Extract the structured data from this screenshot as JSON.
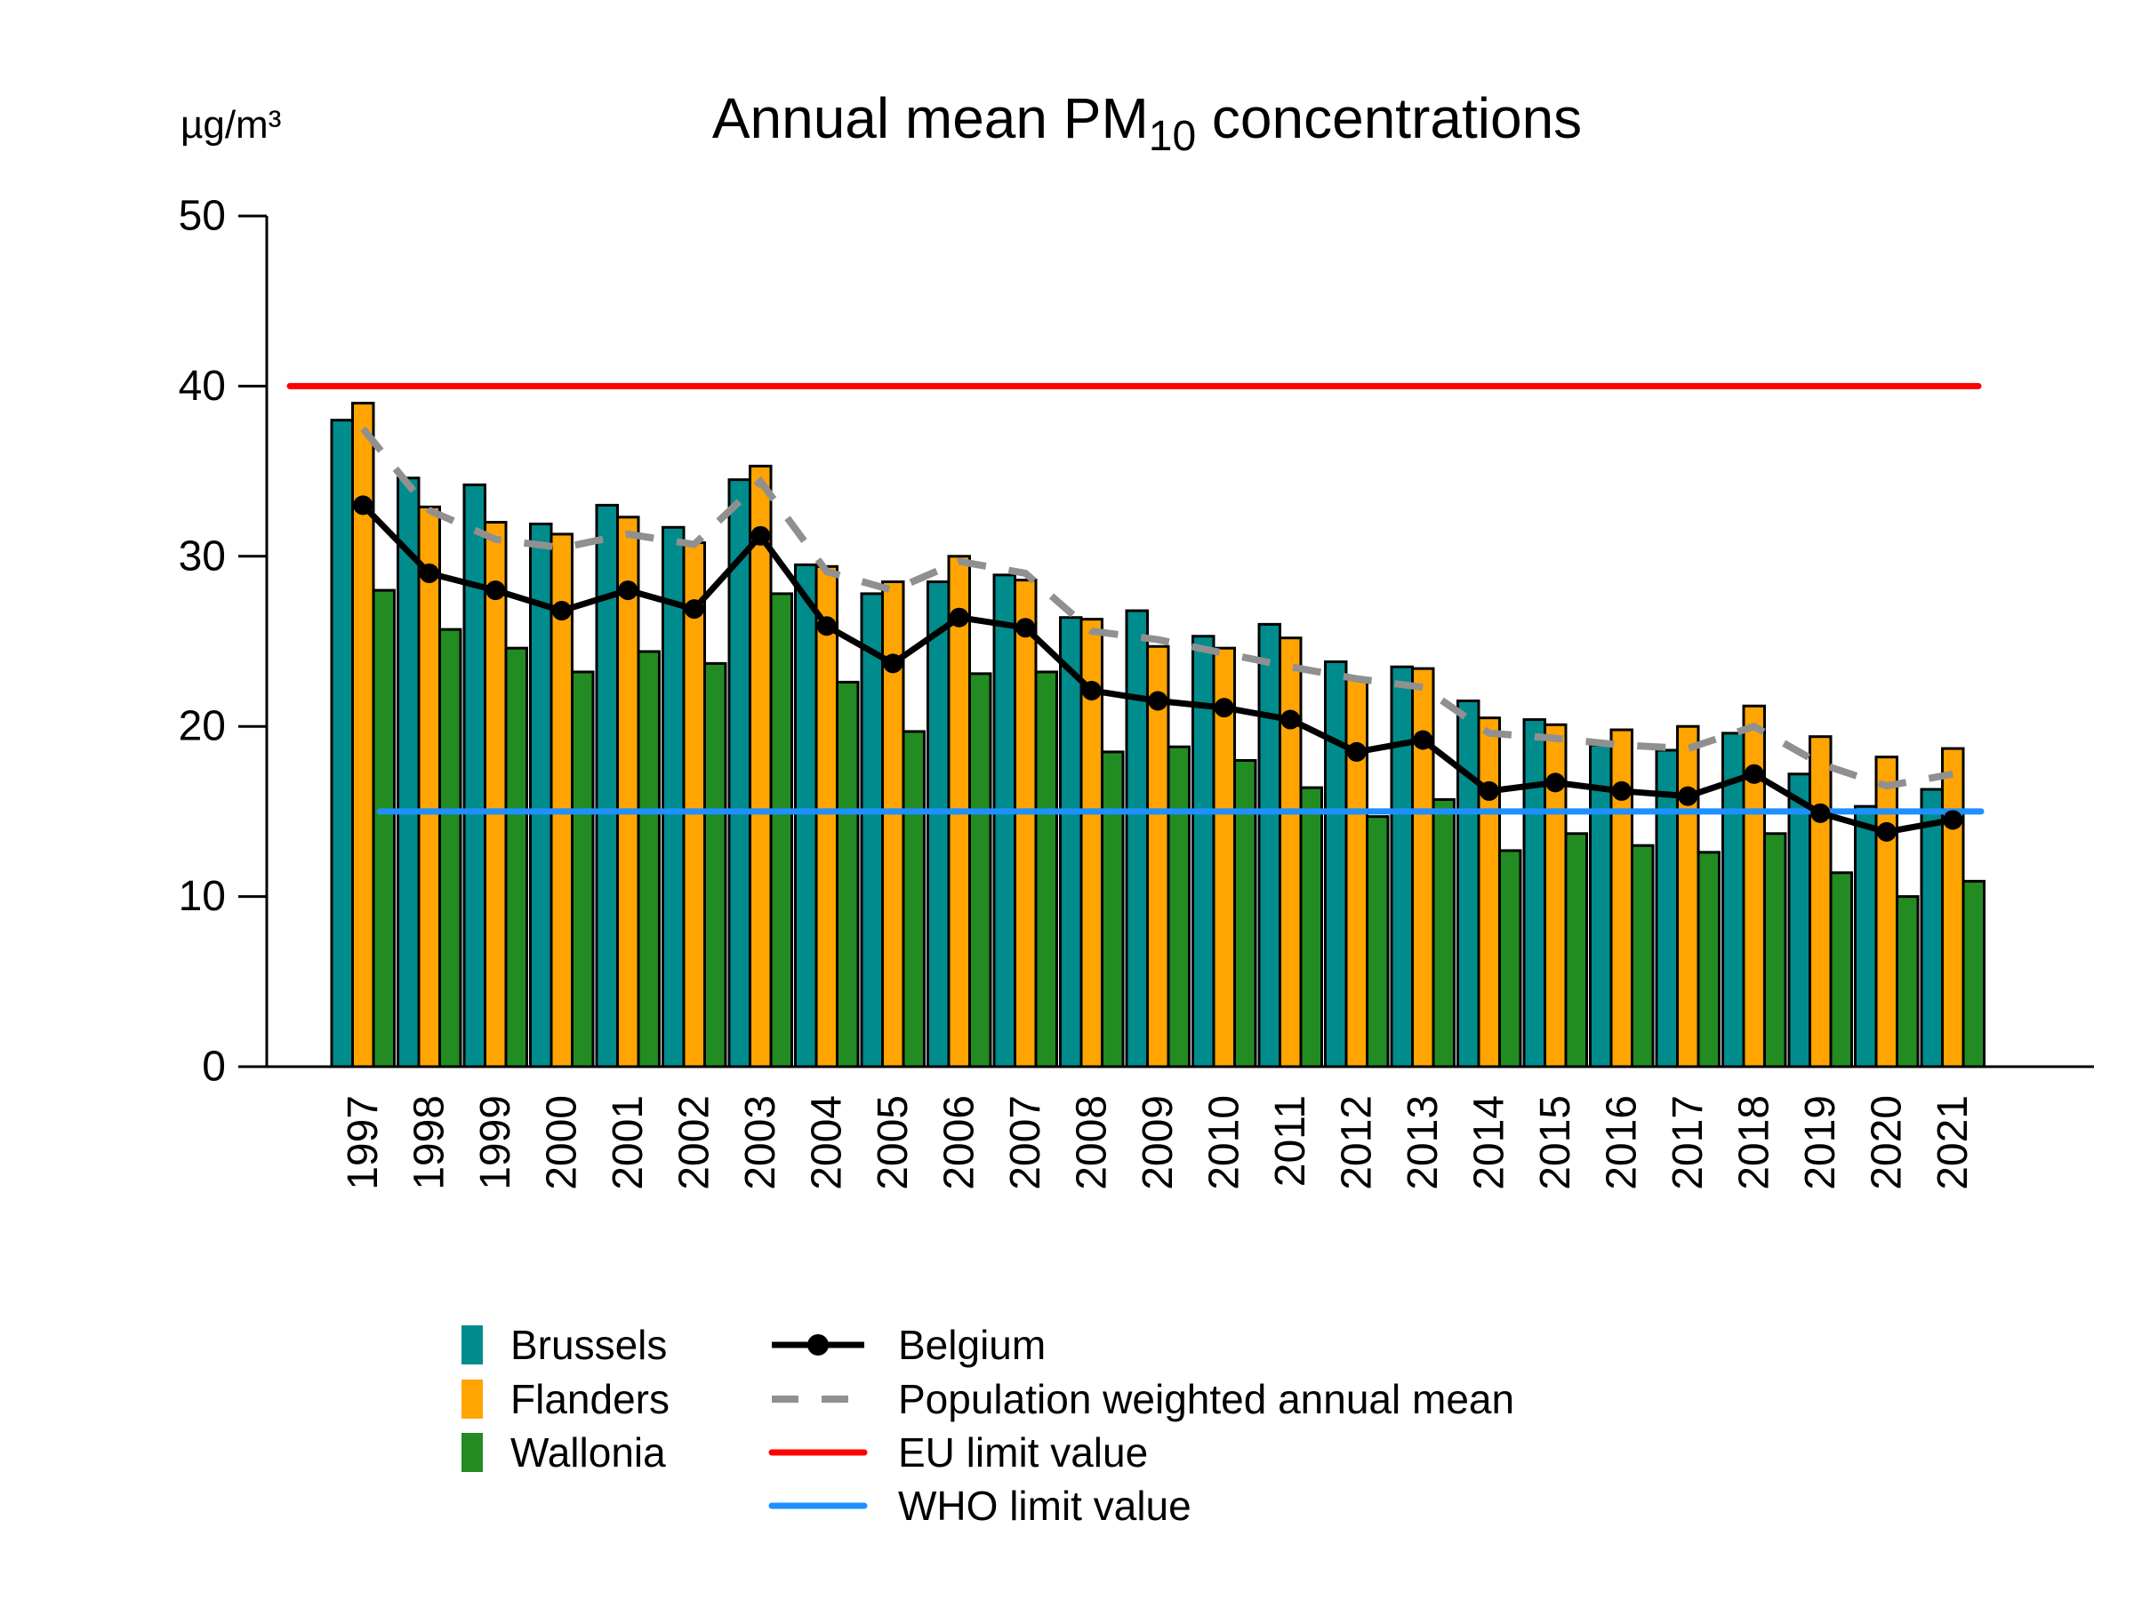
{
  "title": {
    "prefix": "Annual mean PM",
    "subscript": "10",
    "suffix": " concentrations"
  },
  "unit_label": "µg/m³",
  "chart_data": {
    "type": "bar",
    "title": "Annual mean PM10 concentrations",
    "ylabel": "µg/m³",
    "ylim": [
      0,
      50
    ],
    "yticks": [
      0,
      10,
      20,
      30,
      40,
      50
    ],
    "grid": "off",
    "legend_position": "bottom",
    "categories": [
      1997,
      1998,
      1999,
      2000,
      2001,
      2002,
      2003,
      2004,
      2005,
      2006,
      2007,
      2008,
      2009,
      2010,
      2011,
      2012,
      2013,
      2014,
      2015,
      2016,
      2017,
      2018,
      2019,
      2020,
      2021
    ],
    "series": [
      {
        "name": "Brussels",
        "type": "bar",
        "color": "#008C8C",
        "values": [
          38.0,
          34.6,
          34.2,
          31.9,
          33.0,
          31.7,
          34.5,
          29.5,
          27.8,
          28.5,
          28.9,
          26.4,
          26.8,
          25.3,
          26.0,
          23.8,
          23.5,
          21.5,
          20.4,
          18.9,
          18.6,
          19.6,
          17.2,
          15.3,
          16.3
        ]
      },
      {
        "name": "Flanders",
        "type": "bar",
        "color": "#FFA400",
        "values": [
          39.0,
          32.9,
          32.0,
          31.3,
          32.3,
          30.8,
          35.3,
          29.4,
          28.5,
          30.0,
          28.6,
          26.3,
          24.7,
          24.6,
          25.2,
          22.8,
          23.4,
          20.5,
          20.1,
          19.8,
          20.0,
          21.2,
          19.4,
          18.2,
          18.7
        ]
      },
      {
        "name": "Wallonia",
        "type": "bar",
        "color": "#228B22",
        "values": [
          28.0,
          25.7,
          24.6,
          23.2,
          24.4,
          23.7,
          27.8,
          22.6,
          19.7,
          23.1,
          23.2,
          18.5,
          18.8,
          18.0,
          16.4,
          14.7,
          15.7,
          12.7,
          13.7,
          13.0,
          12.6,
          13.7,
          11.4,
          10.0,
          10.9
        ]
      },
      {
        "name": "Belgium",
        "type": "line",
        "color": "#000000",
        "marker": "circle",
        "values": [
          33.0,
          29.0,
          28.0,
          26.8,
          28.0,
          26.9,
          31.2,
          25.9,
          23.7,
          26.4,
          25.8,
          22.1,
          21.5,
          21.1,
          20.4,
          18.5,
          19.2,
          16.2,
          16.7,
          16.2,
          15.9,
          17.2,
          14.9,
          13.8,
          14.5
        ]
      },
      {
        "name": "Population weighted annual mean",
        "type": "line",
        "color": "#909090",
        "dashed": true,
        "values": [
          37.5,
          32.7,
          31.0,
          30.5,
          31.3,
          30.7,
          34.4,
          29.1,
          28.0,
          29.7,
          29.0,
          25.6,
          25.1,
          24.3,
          23.5,
          22.8,
          22.3,
          19.6,
          19.3,
          18.9,
          18.7,
          20.0,
          17.8,
          16.5,
          17.2
        ]
      },
      {
        "name": "EU limit value",
        "type": "hline",
        "color": "#FF0000",
        "value": 40
      },
      {
        "name": "WHO limit value",
        "type": "hline",
        "color": "#1E90FF",
        "value": 15
      }
    ]
  },
  "legend": {
    "fill_items": [
      "Brussels",
      "Flanders",
      "Wallonia"
    ],
    "line_items": [
      "Belgium",
      "Population weighted annual mean",
      "EU limit value",
      "WHO limit value"
    ]
  }
}
